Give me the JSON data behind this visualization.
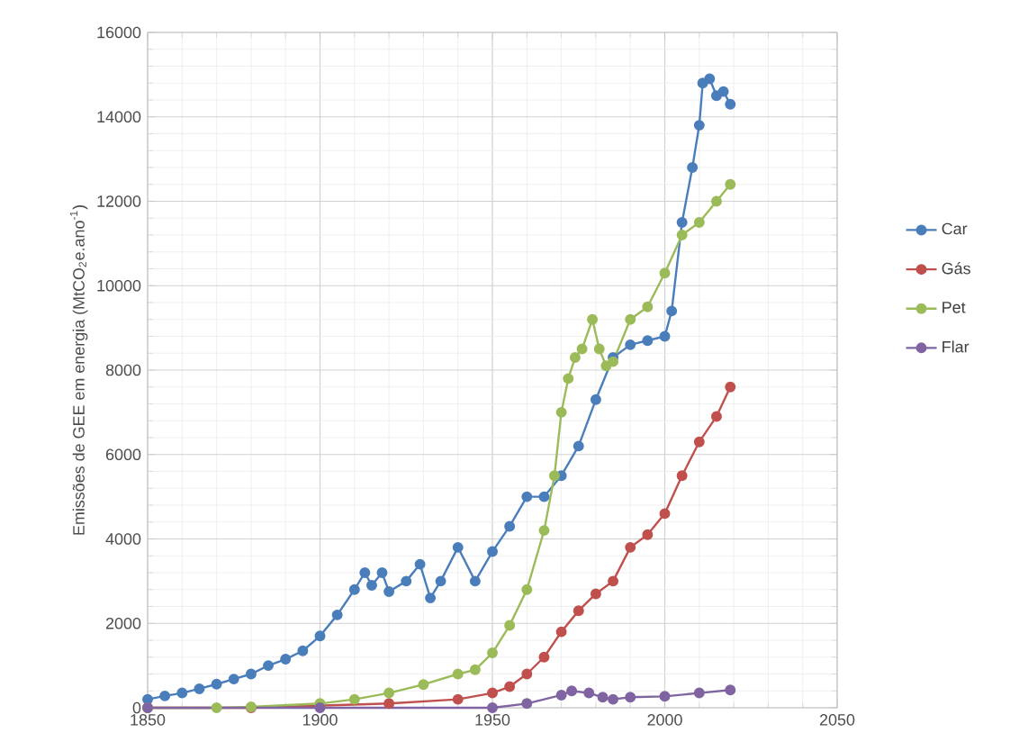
{
  "chart_data": {
    "type": "line",
    "ylabel": "Emissões de GEE em energia (MtCO$_{2}$e.ano$^{-1}$)",
    "xlim": [
      1850,
      2050
    ],
    "xticks": [
      1850,
      1900,
      1950,
      2000,
      2050
    ],
    "ylim": [
      0,
      16000
    ],
    "yticks": [
      0,
      2000,
      4000,
      6000,
      8000,
      10000,
      12000,
      14000,
      16000
    ],
    "grid": true,
    "legend": "right",
    "marker": "circle",
    "line_style": "solid",
    "series": [
      {
        "name": "Car",
        "color": "#4a7ebb",
        "x": [
          1850,
          1855,
          1860,
          1865,
          1870,
          1875,
          1880,
          1885,
          1890,
          1895,
          1900,
          1905,
          1910,
          1913,
          1915,
          1918,
          1920,
          1925,
          1929,
          1932,
          1935,
          1940,
          1945,
          1950,
          1955,
          1960,
          1965,
          1970,
          1975,
          1980,
          1985,
          1990,
          1995,
          2000,
          2002,
          2005,
          2008,
          2010,
          2011,
          2013,
          2015,
          2017,
          2019
        ],
        "values": [
          200,
          280,
          350,
          450,
          560,
          680,
          800,
          1000,
          1150,
          1350,
          1700,
          2200,
          2800,
          3200,
          2900,
          3200,
          2750,
          3000,
          3400,
          2600,
          3000,
          3800,
          3000,
          3700,
          4300,
          5000,
          5000,
          5500,
          6200,
          7300,
          8300,
          8600,
          8700,
          8800,
          9400,
          11500,
          12800,
          13800,
          14800,
          14900,
          14500,
          14600,
          14300
        ]
      },
      {
        "name": "Gás",
        "color": "#c0504d",
        "x": [
          1850,
          1880,
          1920,
          1940,
          1950,
          1955,
          1960,
          1965,
          1970,
          1975,
          1980,
          1985,
          1990,
          1995,
          2000,
          2005,
          2010,
          2015,
          2019
        ],
        "values": [
          0,
          0,
          100,
          200,
          350,
          500,
          800,
          1200,
          1800,
          2300,
          2700,
          3000,
          3800,
          4100,
          4600,
          5500,
          6300,
          6900,
          7600
        ]
      },
      {
        "name": "Pet",
        "color": "#9bbb59",
        "x": [
          1850,
          1870,
          1880,
          1900,
          1910,
          1920,
          1930,
          1940,
          1945,
          1950,
          1955,
          1960,
          1965,
          1968,
          1970,
          1972,
          1974,
          1976,
          1979,
          1981,
          1983,
          1985,
          1990,
          1995,
          2000,
          2005,
          2010,
          2015,
          2019
        ],
        "values": [
          0,
          0,
          20,
          100,
          200,
          350,
          550,
          800,
          900,
          1300,
          1950,
          2800,
          4200,
          5500,
          7000,
          7800,
          8300,
          8500,
          9200,
          8500,
          8100,
          8200,
          9200,
          9500,
          10300,
          11200,
          11500,
          12000,
          12400
        ]
      },
      {
        "name": "Flar",
        "color": "#8064a2",
        "x": [
          1850,
          1900,
          1950,
          1960,
          1970,
          1973,
          1978,
          1982,
          1985,
          1990,
          2000,
          2010,
          2019
        ],
        "values": [
          0,
          0,
          0,
          100,
          300,
          400,
          350,
          250,
          200,
          250,
          270,
          350,
          420
        ]
      }
    ]
  }
}
